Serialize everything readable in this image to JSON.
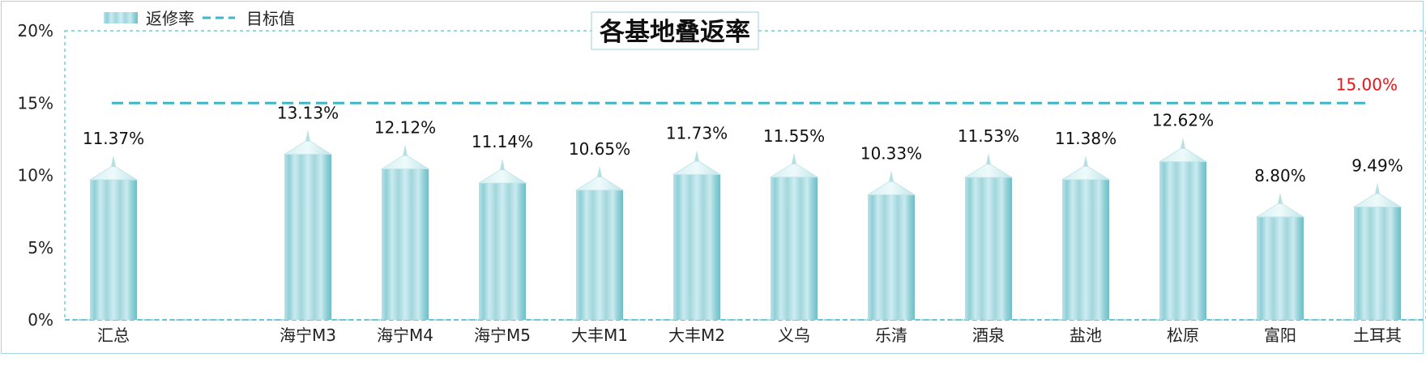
{
  "chart_data": {
    "type": "bar",
    "title": "各基地叠返率",
    "categories": [
      "汇总",
      "",
      "海宁M3",
      "海宁M4",
      "海宁M5",
      "大丰M1",
      "大丰M2",
      "义乌",
      "乐清",
      "酒泉",
      "盐池",
      "松原",
      "富阳",
      "土耳其"
    ],
    "series": [
      {
        "name": "返修率",
        "values": [
          11.37,
          null,
          13.13,
          12.12,
          11.14,
          10.65,
          11.73,
          11.55,
          10.33,
          11.53,
          11.38,
          12.62,
          8.8,
          9.49
        ],
        "labels": [
          "11.37%",
          "",
          "13.13%",
          "12.12%",
          "11.14%",
          "10.65%",
          "11.73%",
          "11.55%",
          "10.33%",
          "11.53%",
          "11.38%",
          "12.62%",
          "8.80%",
          "9.49%"
        ],
        "color": "#a6d8de"
      },
      {
        "name": "目标值",
        "type": "line",
        "style": "dashed",
        "value": 15.0,
        "label": "15.00%",
        "color": "#3bb7c7",
        "label_color": "#e8141a"
      }
    ],
    "ylim": [
      0,
      20
    ],
    "yticks": [
      0,
      5,
      10,
      15,
      20
    ],
    "ytick_labels": [
      "0%",
      "5%",
      "10%",
      "15%",
      "20%"
    ],
    "grid": false,
    "legend_position": "top-left"
  }
}
